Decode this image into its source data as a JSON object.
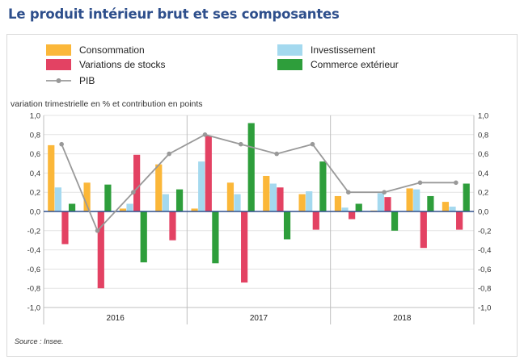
{
  "title": "Le produit intérieur brut et ses composantes",
  "source": "Source : Insee.",
  "chart_data": {
    "type": "bar",
    "ylabel": "variation trimestrielle en % et contribution en points",
    "ylim": [
      -1.0,
      1.0
    ],
    "yticks": [
      "-1,0",
      "-0,8",
      "-0,6",
      "-0,4",
      "-0,2",
      "0,0",
      "0,2",
      "0,4",
      "0,6",
      "0,8",
      "1,0"
    ],
    "years": [
      "2016",
      "2017",
      "2018"
    ],
    "quarters_per_year": 4,
    "grid": true,
    "legend_placement": "top",
    "series": [
      {
        "name": "Consommation",
        "color": "#fbb739",
        "values": [
          0.69,
          0.3,
          0.03,
          0.49,
          0.03,
          0.3,
          0.37,
          0.18,
          0.16,
          0.01,
          0.24,
          0.1
        ]
      },
      {
        "name": "Investissement",
        "color": "#a4d9ef",
        "values": [
          0.25,
          0.0,
          0.08,
          0.18,
          0.52,
          0.18,
          0.29,
          0.21,
          0.04,
          0.19,
          0.23,
          0.05
        ]
      },
      {
        "name": "Variations de stocks",
        "color": "#e34263",
        "values": [
          -0.34,
          -0.8,
          0.59,
          -0.3,
          0.79,
          -0.74,
          0.25,
          -0.19,
          -0.08,
          0.15,
          -0.38,
          -0.19
        ]
      },
      {
        "name": "Commerce extérieur",
        "color": "#2e9e3b",
        "values": [
          0.08,
          0.28,
          -0.53,
          0.23,
          -0.54,
          0.92,
          -0.29,
          0.52,
          0.08,
          -0.2,
          0.16,
          0.29
        ]
      },
      {
        "name": "PIB",
        "color": "#999999",
        "type": "line",
        "values": [
          0.7,
          -0.2,
          0.2,
          0.6,
          0.8,
          0.7,
          0.6,
          0.7,
          0.2,
          0.2,
          0.3,
          0.3
        ]
      }
    ]
  }
}
